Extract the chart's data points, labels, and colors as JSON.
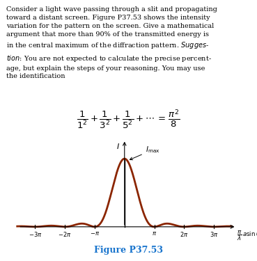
{
  "fig_width": 3.69,
  "fig_height": 3.75,
  "dpi": 100,
  "bg_color": "#ffffff",
  "text_color": "#000000",
  "curve_color": "#8B2500",
  "axis_color": "#000000",
  "figure_label_color": "#1874CD",
  "figure_label": "Figure P37.53",
  "plot_xlim": [
    -11.5,
    11.8
  ],
  "plot_ylim": [
    -0.1,
    1.28
  ],
  "curve_linewidth": 2.0,
  "vline_linewidth": 1.0,
  "tick_positions": [
    -9.42478,
    -6.28318,
    -3.14159,
    3.14159,
    6.28318,
    9.42478
  ],
  "tick_labels": [
    "$-3\\pi$",
    "$-2\\pi$",
    "$-\\pi$",
    "$\\pi$",
    "$2\\pi$",
    "$3\\pi$"
  ],
  "text_fontsize": 7.0,
  "eq_fontsize": 9.5,
  "fig_label_fontsize": 9.0
}
